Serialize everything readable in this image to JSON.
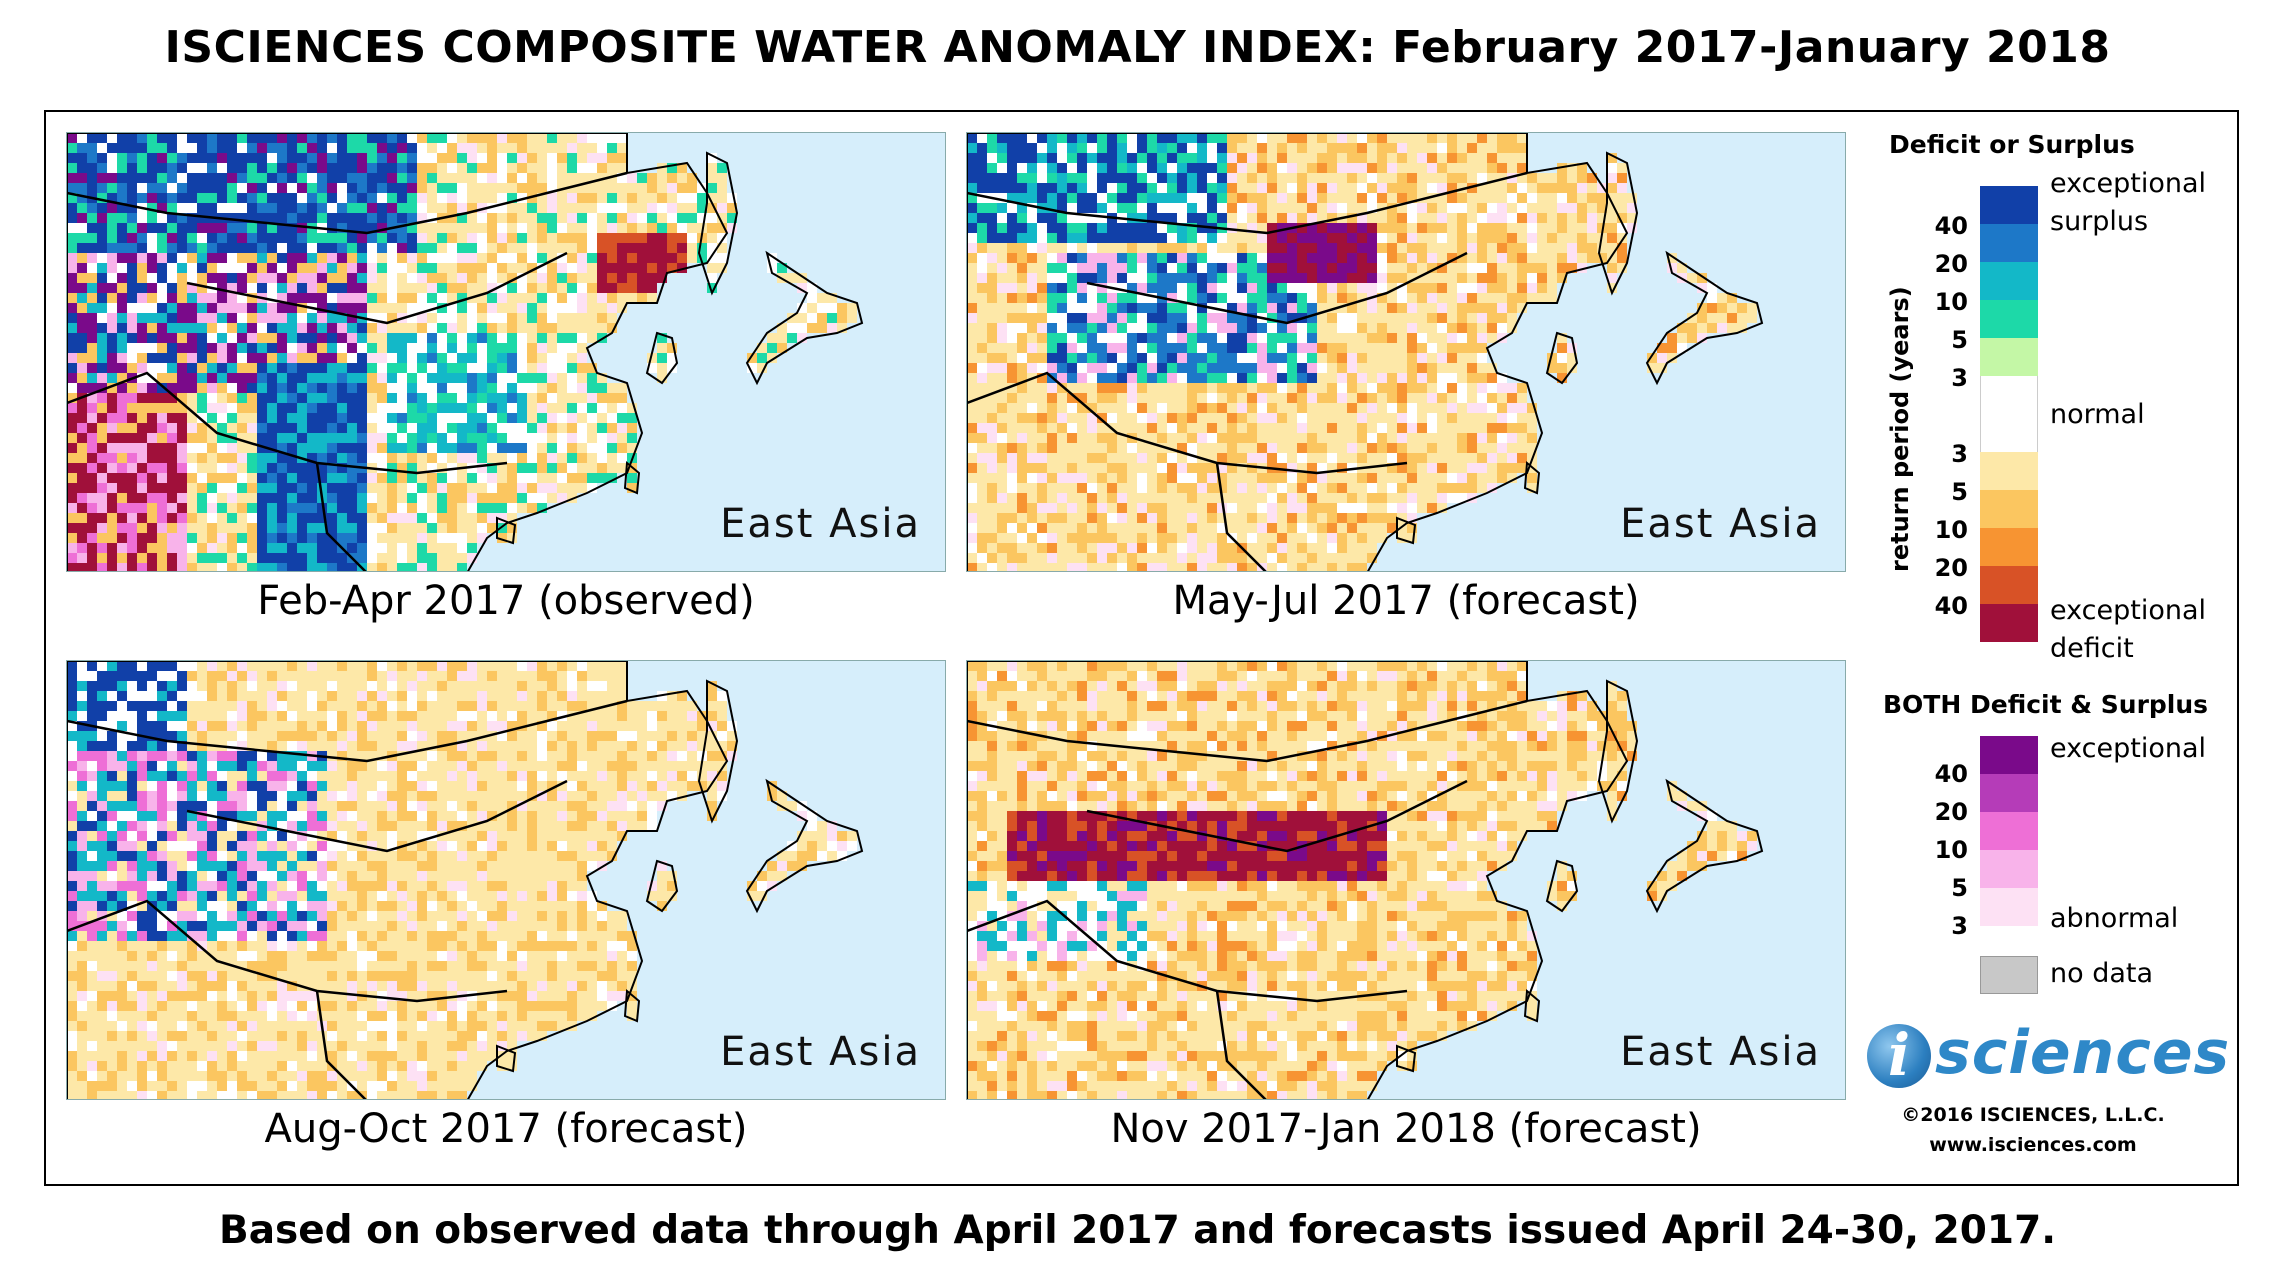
{
  "title": "ISCIENCES COMPOSITE WATER ANOMALY INDEX: February 2017-January 2018",
  "footer": "Based on observed data through April 2017 and forecasts issued April 24-30, 2017.",
  "panels": [
    {
      "region": "East Asia",
      "caption": "Feb-Apr 2017 (observed)",
      "pattern": "observed"
    },
    {
      "region": "East Asia",
      "caption": "May-Jul 2017 (forecast)",
      "pattern": "may"
    },
    {
      "region": "East Asia",
      "caption": "Aug-Oct 2017 (forecast)",
      "pattern": "aug"
    },
    {
      "region": "East Asia",
      "caption": "Nov 2017-Jan 2018 (forecast)",
      "pattern": "nov"
    }
  ],
  "legend": {
    "heading1": "Deficit or Surplus",
    "axis_label": "return period (years)",
    "exceptional": "exceptional",
    "surplus": "surplus",
    "normal": "normal",
    "deficit": "deficit",
    "surplus_ticks": [
      "40",
      "20",
      "10",
      "5",
      "3"
    ],
    "deficit_ticks": [
      "3",
      "5",
      "10",
      "20",
      "40"
    ],
    "surplus_colors": [
      "#1140a8",
      "#1d78c8",
      "#13b8c8",
      "#1dd9a8",
      "#c4f7a6"
    ],
    "normal_color": "#ffffff",
    "deficit_colors": [
      "#fde8a8",
      "#fbc660",
      "#f79432",
      "#d85226",
      "#a0103a"
    ],
    "heading2": "BOTH Deficit & Surplus",
    "both_ticks": [
      "40",
      "20",
      "10",
      "5",
      "3"
    ],
    "both_colors": [
      "#7a0a8a",
      "#b53cb8",
      "#ee6fd6",
      "#f8b3ea",
      "#fde1f4"
    ],
    "both_top": "exceptional",
    "both_bottom": "abnormal",
    "nodata": "no data",
    "nodata_color": "#c8c8c8"
  },
  "logo": {
    "i": "i",
    "word": "sciences",
    "copyright": "©2016 ISCIENCES, L.L.C.",
    "url": "www.isciences.com"
  },
  "colors": {
    "ocean": "#d6eefb"
  }
}
